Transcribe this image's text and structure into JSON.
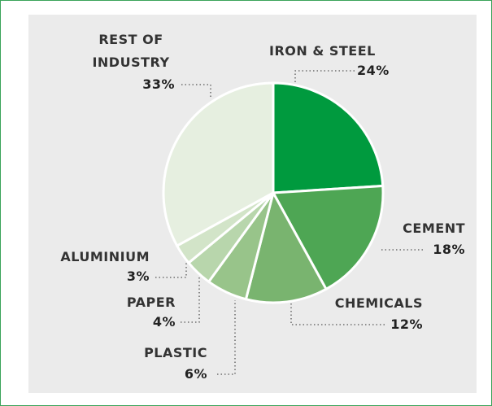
{
  "chart_data": {
    "type": "pie",
    "categories": [
      "IRON & STEEL",
      "CEMENT",
      "CHEMICALS",
      "PLASTIC",
      "PAPER",
      "ALUMINIUM",
      "REST OF INDUSTRY"
    ],
    "values": [
      24,
      18,
      12,
      6,
      4,
      3,
      33
    ],
    "value_labels": [
      "24%",
      "18%",
      "12%",
      "6%",
      "4%",
      "3%",
      "33%"
    ],
    "colors": [
      "#009a3e",
      "#4ea654",
      "#79b46f",
      "#98c48a",
      "#b8d6ac",
      "#d2e4c8",
      "#e6efe0"
    ]
  }
}
